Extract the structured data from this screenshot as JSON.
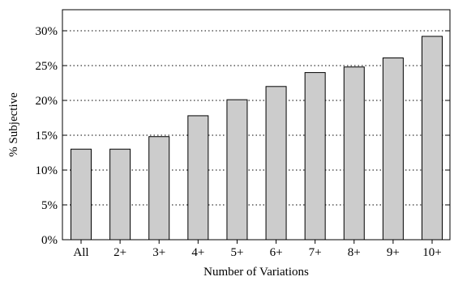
{
  "chart_data": {
    "type": "bar",
    "categories": [
      "All",
      "2+",
      "3+",
      "4+",
      "5+",
      "6+",
      "7+",
      "8+",
      "9+",
      "10+"
    ],
    "values": [
      13.0,
      13.0,
      14.8,
      17.8,
      20.1,
      22.0,
      24.0,
      24.8,
      26.1,
      29.2
    ],
    "title": "",
    "xlabel": "Number of Variations",
    "ylabel": "% Subjective",
    "ylim": [
      0,
      30
    ],
    "yticks": [
      0,
      5,
      10,
      15,
      20,
      25,
      30
    ],
    "ytick_labels": [
      "0%",
      "5%",
      "10%",
      "15%",
      "20%",
      "25%",
      "30%"
    ],
    "grid": "horizontal dotted",
    "bar_color": "#cccccc",
    "bar_edge_color": "#000000"
  }
}
